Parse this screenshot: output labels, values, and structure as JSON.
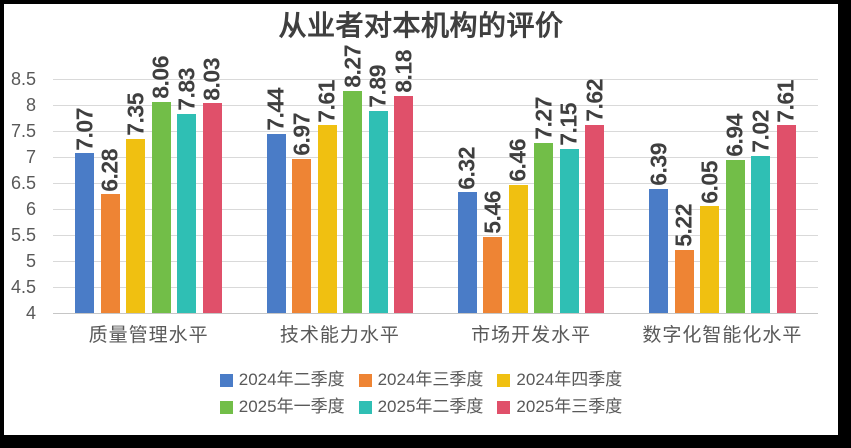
{
  "chart_data": {
    "type": "bar",
    "title": "从业者对本机构的评价",
    "categories": [
      "质量管理水平",
      "技术能力水平",
      "市场开发水平",
      "数字化智能化水平"
    ],
    "series": [
      {
        "name": "2024年二季度",
        "color": "#4A7CC7",
        "values": [
          7.07,
          7.44,
          6.32,
          6.39
        ]
      },
      {
        "name": "2024年三季度",
        "color": "#EE8434",
        "values": [
          6.28,
          6.97,
          5.46,
          5.22
        ]
      },
      {
        "name": "2024年四季度",
        "color": "#F0C011",
        "values": [
          7.35,
          7.61,
          6.46,
          6.05
        ]
      },
      {
        "name": "2025年一季度",
        "color": "#72BE48",
        "values": [
          8.06,
          8.27,
          7.27,
          6.94
        ]
      },
      {
        "name": "2025年二季度",
        "color": "#2FBFB4",
        "values": [
          7.83,
          7.89,
          7.15,
          7.02
        ]
      },
      {
        "name": "2025年三季度",
        "color": "#E0506A",
        "values": [
          8.03,
          8.18,
          7.62,
          7.61
        ]
      }
    ],
    "ylim": [
      4,
      8.5
    ],
    "ytick_step": 0.5,
    "yticks": [
      "8.5",
      "8",
      "7.5",
      "7",
      "6.5",
      "6",
      "5.5",
      "5",
      "4.5",
      "4"
    ],
    "grid": true,
    "data_labels": {
      "rotation": -90,
      "decimals": 2
    },
    "legend_position": "bottom",
    "legend_items_per_row": 3
  },
  "colors": {
    "title": "#3F3F3F",
    "axis_text": "#595959",
    "data_label": "#3F3F3F",
    "gridline": "#D9D9D9",
    "baseline": "#C6C6C6",
    "frame": "#000000",
    "background": "#FFFFFF"
  }
}
